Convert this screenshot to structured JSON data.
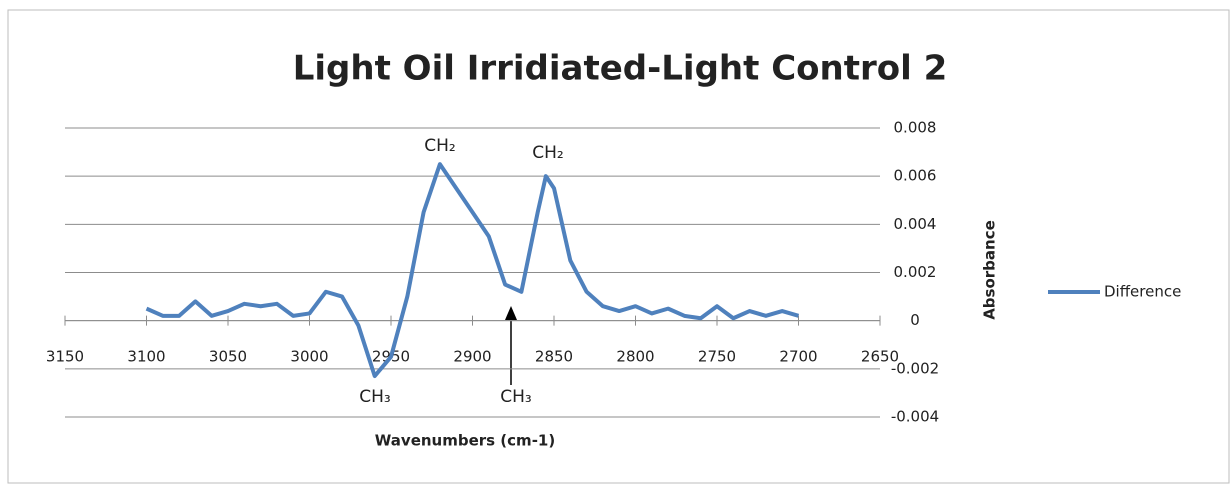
{
  "chart_data": {
    "type": "line",
    "title": "Light Oil Irridiated-Light Control 2",
    "x_label": "Wavenumbers (cm-1)",
    "y_label": "Absorbance",
    "x": [
      3100,
      3090,
      3080,
      3070,
      3060,
      3050,
      3040,
      3030,
      3020,
      3010,
      3000,
      2990,
      2980,
      2970,
      2960,
      2950,
      2940,
      2930,
      2920,
      2910,
      2900,
      2890,
      2880,
      2870,
      2860,
      2855,
      2850,
      2840,
      2830,
      2820,
      2810,
      2800,
      2790,
      2780,
      2770,
      2760,
      2750,
      2740,
      2730,
      2720,
      2710,
      2700
    ],
    "series": [
      {
        "name": "Difference",
        "color": "#4f81bd",
        "values": [
          0.0005,
          0.0002,
          0.0002,
          0.0008,
          0.0002,
          0.0004,
          0.0007,
          0.0006,
          0.0007,
          0.0002,
          0.0003,
          0.0012,
          0.001,
          -0.0002,
          -0.0023,
          -0.0015,
          0.001,
          0.0045,
          0.0065,
          0.0055,
          0.0045,
          0.0035,
          0.0015,
          0.0012,
          0.0045,
          0.006,
          0.0055,
          0.0025,
          0.0012,
          0.0006,
          0.0004,
          0.0006,
          0.0003,
          0.0005,
          0.0002,
          0.0001,
          0.0006,
          0.0001,
          0.0004,
          0.0002,
          0.0004,
          0.0002
        ]
      }
    ],
    "xlim": [
      3150,
      2650
    ],
    "xticks": [
      3150,
      3100,
      3050,
      3000,
      2950,
      2900,
      2850,
      2800,
      2750,
      2700,
      2650
    ],
    "ylim": [
      -0.004,
      0.008
    ],
    "yticks": [
      -0.004,
      -0.002,
      0,
      0.002,
      0.004,
      0.006,
      0.008
    ],
    "grid": true,
    "legend": "right",
    "annotations": [
      "CH₂",
      "CH₂",
      "CH₃",
      "CH₃"
    ]
  }
}
